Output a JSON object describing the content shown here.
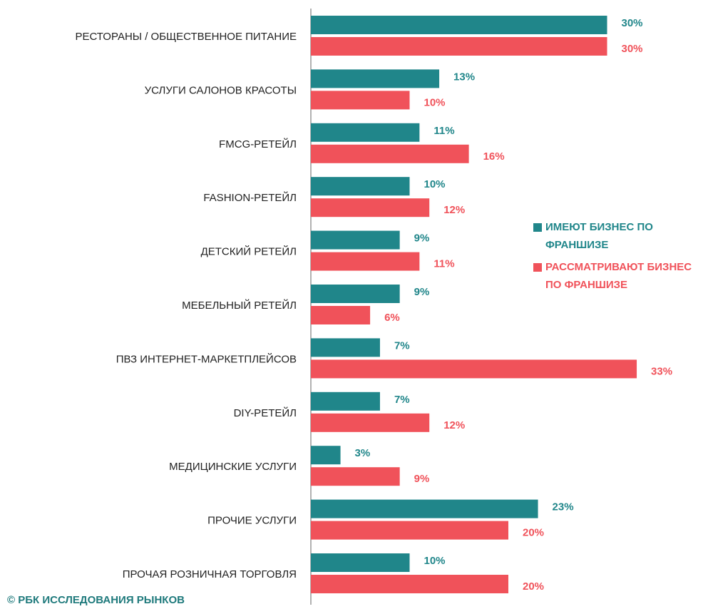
{
  "chart_data": {
    "type": "hbar",
    "categories": [
      "РЕСТОРАНЫ / ОБЩЕСТВЕННОЕ ПИТАНИЕ",
      "УСЛУГИ САЛОНОВ КРАСОТЫ",
      "FMCG-РЕТЕЙЛ",
      "FASHION-РЕТЕЙЛ",
      "ДЕТСКИЙ РЕТЕЙЛ",
      "МЕБЕЛЬНЫЙ РЕТЕЙЛ",
      "ПВЗ ИНТЕРНЕТ-МАРКЕТПЛЕЙСОВ",
      "DIY-РЕТЕЙЛ",
      "МЕДИЦИНСКИЕ УСЛУГИ",
      "ПРОЧИЕ УСЛУГИ",
      "ПРОЧАЯ РОЗНИЧНАЯ ТОРГОВЛЯ"
    ],
    "series": [
      {
        "name": "ИМЕЮТ БИЗНЕС ПО ФРАНШИЗЕ",
        "color": "#20868a",
        "values": [
          30,
          13,
          11,
          10,
          9,
          9,
          7,
          7,
          3,
          23,
          10
        ],
        "value_labels": [
          "30%",
          "13%",
          "11%",
          "10%",
          "9%",
          "9%",
          "7%",
          "7%",
          "3%",
          "23%",
          "10%"
        ]
      },
      {
        "name": "РАССМАТРИВАЮТ БИЗНЕС ПО ФРАНШИЗЕ",
        "color": "#f0525a",
        "values": [
          30,
          10,
          16,
          12,
          11,
          6,
          33,
          12,
          9,
          20,
          20
        ],
        "value_labels": [
          "30%",
          "10%",
          "16%",
          "12%",
          "11%",
          "6%",
          "33%",
          "12%",
          "9%",
          "20%",
          "20%"
        ]
      }
    ],
    "legend": "right",
    "source": "© РБК ИССЛЕДОВАНИЯ РЫНКОВ"
  }
}
